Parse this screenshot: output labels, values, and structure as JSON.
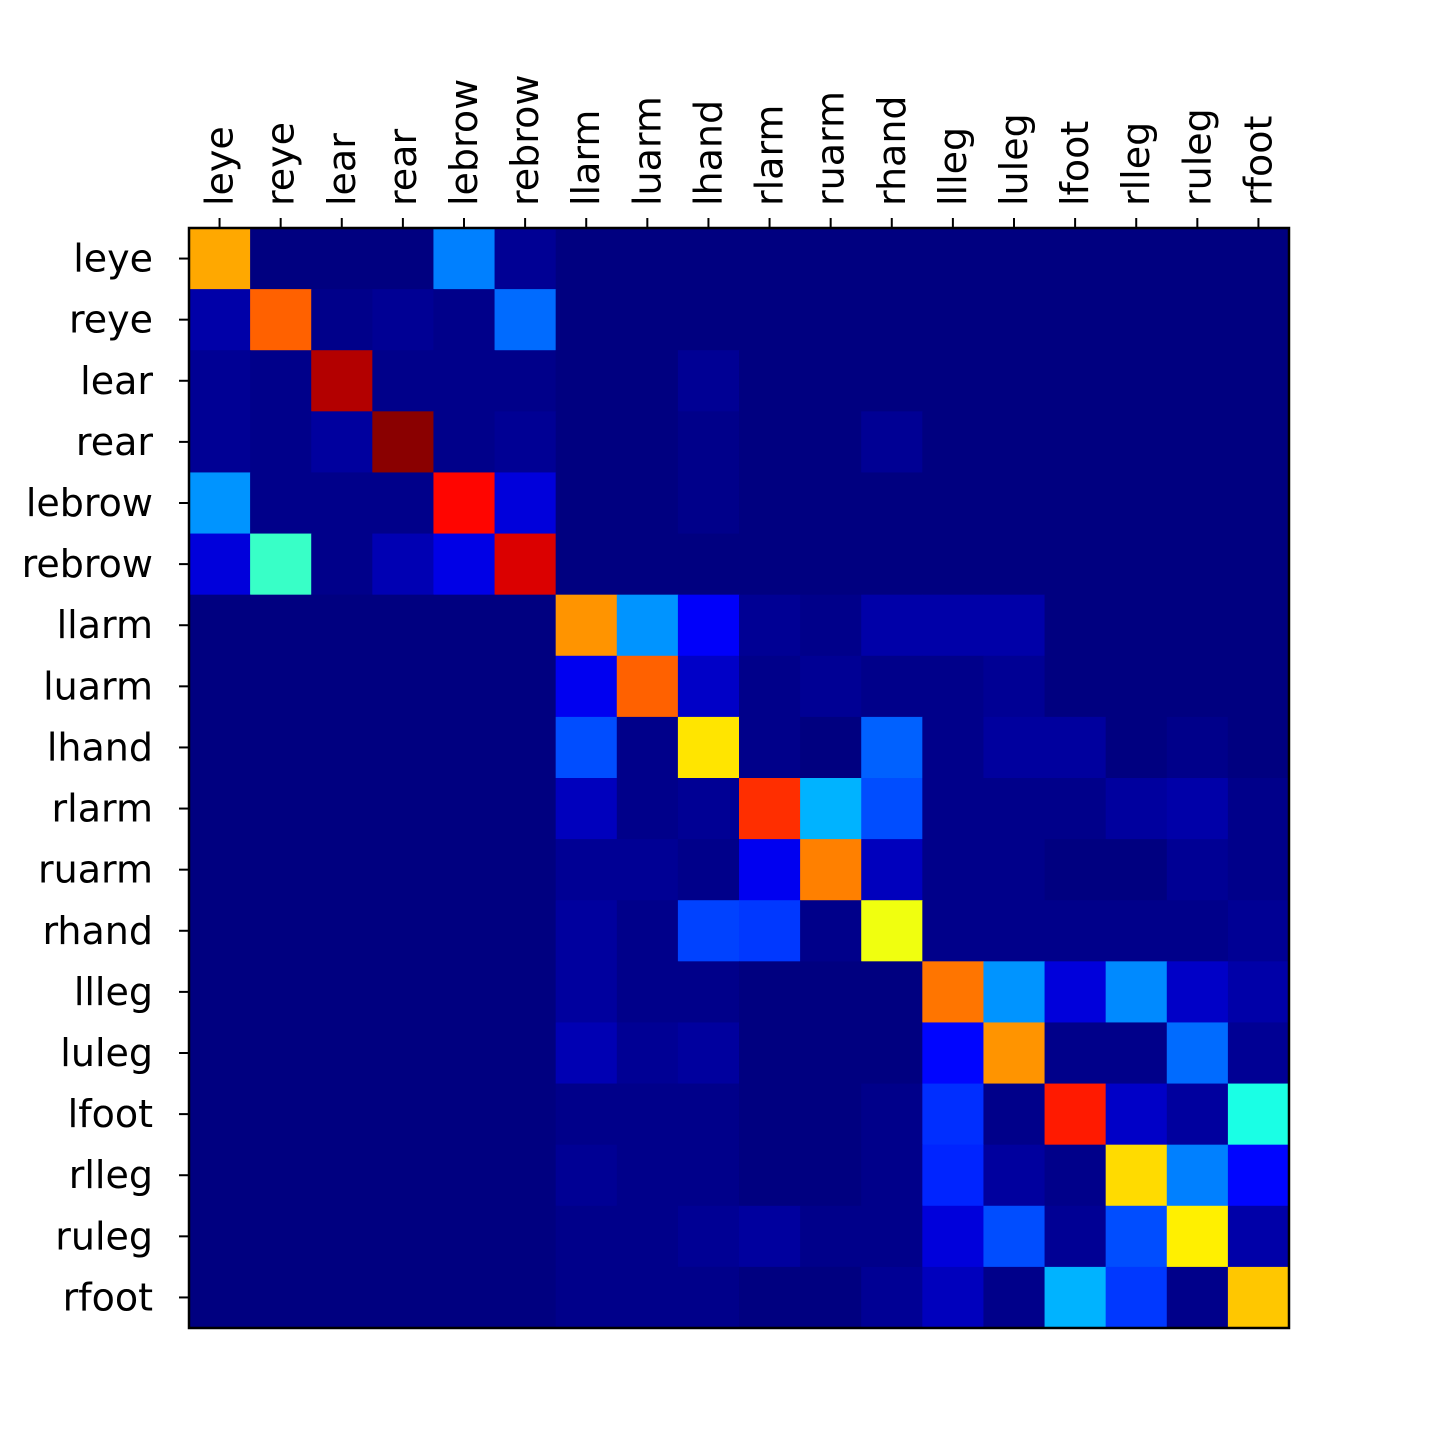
{
  "chart_data": {
    "type": "heatmap",
    "title": "",
    "xlabel": "",
    "ylabel": "",
    "colormap": "jet",
    "value_range": [
      0,
      1
    ],
    "grid": false,
    "colorbar": false,
    "x_tick_position": "top",
    "x_tick_rotation": 90,
    "x_categories": [
      "leye",
      "reye",
      "lear",
      "rear",
      "lebrow",
      "rebrow",
      "llarm",
      "luarm",
      "lhand",
      "rlarm",
      "ruarm",
      "rhand",
      "llleg",
      "luleg",
      "lfoot",
      "rlleg",
      "ruleg",
      "rfoot"
    ],
    "y_categories": [
      "leye",
      "reye",
      "lear",
      "rear",
      "lebrow",
      "rebrow",
      "llarm",
      "luarm",
      "lhand",
      "rlarm",
      "ruarm",
      "rhand",
      "llleg",
      "luleg",
      "lfoot",
      "rlleg",
      "ruleg",
      "rfoot"
    ],
    "values": [
      [
        0.71,
        0.0,
        0.0,
        0.0,
        0.25,
        0.02,
        0.0,
        0.0,
        0.0,
        0.0,
        0.0,
        0.0,
        0.0,
        0.0,
        0.0,
        0.0,
        0.0,
        0.0
      ],
      [
        0.04,
        0.78,
        0.01,
        0.02,
        0.01,
        0.23,
        0.0,
        0.0,
        0.0,
        0.0,
        0.0,
        0.0,
        0.0,
        0.0,
        0.0,
        0.0,
        0.0,
        0.0
      ],
      [
        0.02,
        0.01,
        0.95,
        0.01,
        0.01,
        0.01,
        0.0,
        0.0,
        0.02,
        0.0,
        0.0,
        0.0,
        0.0,
        0.0,
        0.0,
        0.0,
        0.0,
        0.0
      ],
      [
        0.02,
        0.01,
        0.03,
        0.99,
        0.01,
        0.02,
        0.0,
        0.0,
        0.01,
        0.0,
        0.0,
        0.02,
        0.0,
        0.0,
        0.0,
        0.0,
        0.0,
        0.0
      ],
      [
        0.27,
        0.01,
        0.01,
        0.01,
        0.87,
        0.09,
        0.0,
        0.0,
        0.01,
        0.0,
        0.0,
        0.0,
        0.0,
        0.0,
        0.0,
        0.0,
        0.0,
        0.0
      ],
      [
        0.09,
        0.43,
        0.01,
        0.05,
        0.1,
        0.91,
        0.0,
        0.0,
        0.0,
        0.0,
        0.0,
        0.0,
        0.0,
        0.0,
        0.0,
        0.0,
        0.0,
        0.0
      ],
      [
        0.0,
        0.0,
        0.0,
        0.0,
        0.0,
        0.0,
        0.73,
        0.27,
        0.12,
        0.02,
        0.01,
        0.04,
        0.04,
        0.04,
        0.0,
        0.0,
        0.0,
        0.0
      ],
      [
        0.0,
        0.0,
        0.0,
        0.0,
        0.0,
        0.0,
        0.11,
        0.78,
        0.07,
        0.01,
        0.02,
        0.01,
        0.01,
        0.02,
        0.0,
        0.0,
        0.0,
        0.0
      ],
      [
        0.0,
        0.0,
        0.0,
        0.0,
        0.0,
        0.0,
        0.2,
        0.01,
        0.65,
        0.01,
        0.0,
        0.22,
        0.01,
        0.03,
        0.03,
        0.0,
        0.01,
        0.0
      ],
      [
        0.0,
        0.0,
        0.0,
        0.0,
        0.0,
        0.0,
        0.06,
        0.01,
        0.02,
        0.83,
        0.3,
        0.2,
        0.01,
        0.01,
        0.01,
        0.03,
        0.04,
        0.01
      ],
      [
        0.0,
        0.0,
        0.0,
        0.0,
        0.0,
        0.0,
        0.02,
        0.02,
        0.01,
        0.11,
        0.75,
        0.06,
        0.01,
        0.01,
        0.0,
        0.0,
        0.02,
        0.01
      ],
      [
        0.0,
        0.0,
        0.0,
        0.0,
        0.0,
        0.0,
        0.03,
        0.01,
        0.19,
        0.18,
        0.01,
        0.61,
        0.01,
        0.01,
        0.01,
        0.01,
        0.01,
        0.02
      ],
      [
        0.0,
        0.0,
        0.0,
        0.0,
        0.0,
        0.0,
        0.03,
        0.01,
        0.01,
        0.0,
        0.0,
        0.0,
        0.76,
        0.27,
        0.09,
        0.26,
        0.07,
        0.04
      ],
      [
        0.0,
        0.0,
        0.0,
        0.0,
        0.0,
        0.0,
        0.05,
        0.02,
        0.03,
        0.0,
        0.0,
        0.0,
        0.13,
        0.73,
        0.01,
        0.01,
        0.23,
        0.02
      ],
      [
        0.0,
        0.0,
        0.0,
        0.0,
        0.0,
        0.0,
        0.01,
        0.01,
        0.01,
        0.0,
        0.0,
        0.01,
        0.17,
        0.01,
        0.85,
        0.07,
        0.03,
        0.4
      ],
      [
        0.0,
        0.0,
        0.0,
        0.0,
        0.0,
        0.0,
        0.02,
        0.01,
        0.01,
        0.0,
        0.0,
        0.01,
        0.16,
        0.03,
        0.01,
        0.66,
        0.25,
        0.13
      ],
      [
        0.0,
        0.0,
        0.0,
        0.0,
        0.0,
        0.0,
        0.01,
        0.01,
        0.02,
        0.03,
        0.01,
        0.01,
        0.09,
        0.2,
        0.02,
        0.2,
        0.64,
        0.04
      ],
      [
        0.0,
        0.0,
        0.0,
        0.0,
        0.0,
        0.0,
        0.01,
        0.01,
        0.01,
        0.0,
        0.0,
        0.02,
        0.06,
        0.01,
        0.3,
        0.18,
        0.01,
        0.68
      ]
    ]
  }
}
